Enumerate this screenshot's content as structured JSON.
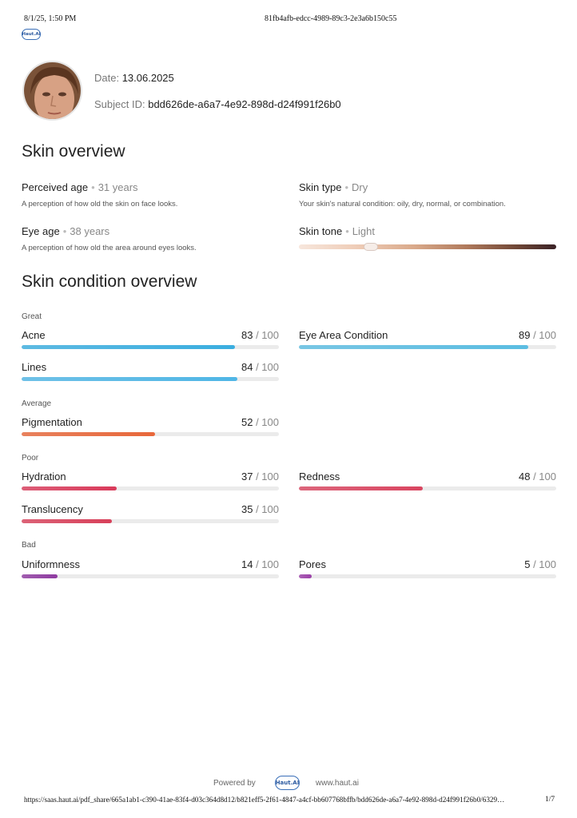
{
  "print_header": {
    "datetime": "8/1/25, 1:50 PM",
    "doc_id": "81fb4afb-edcc-4989-89c3-2e3a6b150c55"
  },
  "brand": {
    "logo_text": "Haut.AI"
  },
  "subject": {
    "date_label": "Date:",
    "date_value": "13.06.2025",
    "id_label": "Subject ID:",
    "id_value": "bdd626de-a6a7-4e92-898d-d24f991f26b0"
  },
  "skin_overview": {
    "title": "Skin overview",
    "perceived_age": {
      "label": "Perceived age",
      "value": "31 years",
      "description": "A perception of how old the skin on face looks."
    },
    "eye_age": {
      "label": "Eye age",
      "value": "38 years",
      "description": "A perception of how old the area around eyes looks."
    },
    "skin_type": {
      "label": "Skin type",
      "value": "Dry",
      "description": "Your skin's natural condition: oily, dry, normal, or combination."
    },
    "skin_tone": {
      "label": "Skin tone",
      "value": "Light",
      "position": 0.28
    }
  },
  "skin_condition": {
    "title": "Skin condition overview",
    "max_text": "100",
    "groups": {
      "great": "Great",
      "average": "Average",
      "poor": "Poor",
      "bad": "Bad"
    },
    "items": {
      "acne": {
        "name": "Acne",
        "score": "83",
        "fraction": 0.83,
        "color": "#3aaee0"
      },
      "eye_area": {
        "name": "Eye Area Condition",
        "score": "89",
        "fraction": 0.89,
        "color": "#5bbde2"
      },
      "lines": {
        "name": "Lines",
        "score": "84",
        "fraction": 0.84,
        "color": "#4fb6e6"
      },
      "pigmentation": {
        "name": "Pigmentation",
        "score": "52",
        "fraction": 0.52,
        "color": "#e8673a"
      },
      "hydration": {
        "name": "Hydration",
        "score": "37",
        "fraction": 0.37,
        "color": "#d93a5a"
      },
      "redness": {
        "name": "Redness",
        "score": "48",
        "fraction": 0.48,
        "color": "#d94560"
      },
      "translucency": {
        "name": "Translucency",
        "score": "35",
        "fraction": 0.35,
        "color": "#d8405a"
      },
      "uniformness": {
        "name": "Uniformness",
        "score": "14",
        "fraction": 0.14,
        "color": "#8e3aa0"
      },
      "pores": {
        "name": "Pores",
        "score": "5",
        "fraction": 0.05,
        "color": "#9b3fa8"
      }
    }
  },
  "footer": {
    "powered_by": "Powered by",
    "logo_text": "Haut.AI",
    "website": "www.haut.ai",
    "url": "https://saas.haut.ai/pdf_share/665a1ab1-c390-41ae-83f4-d03c364d8d12/b821eff5-2f61-4847-a4cf-bb607768bffb/bdd626de-a6a7-4e92-898d-d24f991f26b0/6329…",
    "page": "1/7"
  }
}
